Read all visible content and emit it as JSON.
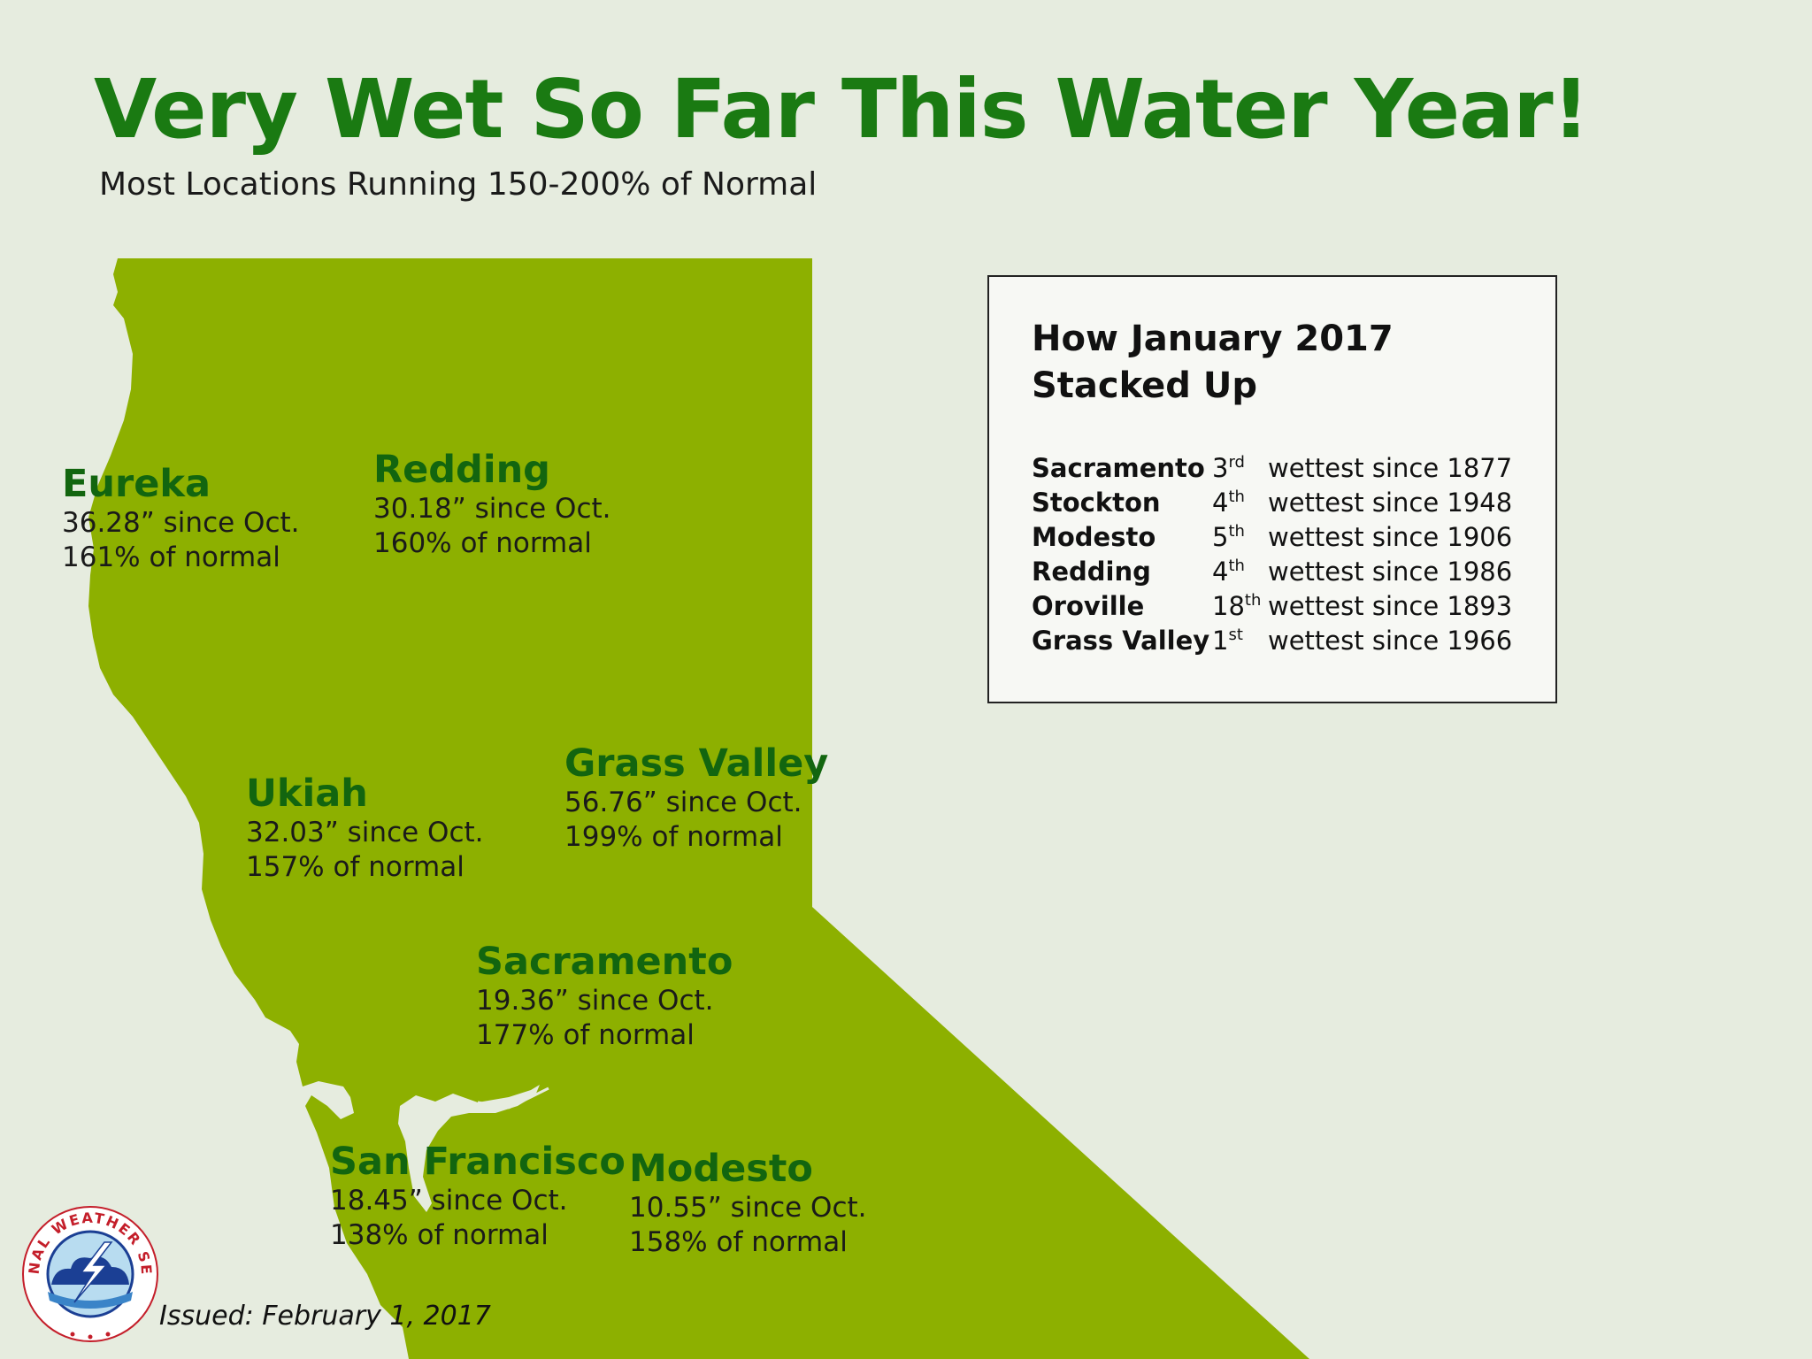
{
  "title": "Very Wet So Far This Water Year!",
  "subtitle": "Most Locations Running 150-200% of Normal",
  "colors": {
    "land": "#8db000",
    "background": "#e6ecdf",
    "title": "#1a7a12",
    "city_name": "#12650f"
  },
  "cities": [
    {
      "name": "Eureka",
      "precip": "36.28” since Oct.",
      "pct": "161% of normal"
    },
    {
      "name": "Redding",
      "precip": "30.18” since Oct.",
      "pct": "160% of normal"
    },
    {
      "name": "Grass Valley",
      "precip": "56.76” since Oct.",
      "pct": "199% of normal"
    },
    {
      "name": "Ukiah",
      "precip": "32.03” since Oct.",
      "pct": "157% of normal"
    },
    {
      "name": "Sacramento",
      "precip": "19.36” since Oct.",
      "pct": "177% of normal"
    },
    {
      "name": "San Francisco",
      "precip": "18.45” since Oct.",
      "pct": "138% of normal"
    },
    {
      "name": "Modesto",
      "precip": "10.55” since Oct.",
      "pct": "158% of normal"
    }
  ],
  "panel": {
    "title_line1": "How January 2017",
    "title_line2": "Stacked Up",
    "rows": [
      {
        "city": "Sacramento",
        "rank_num": "3",
        "rank_suffix": "rd",
        "text": "wettest since 1877"
      },
      {
        "city": "Stockton",
        "rank_num": "4",
        "rank_suffix": "th",
        "text": "wettest since 1948"
      },
      {
        "city": "Modesto",
        "rank_num": "5",
        "rank_suffix": "th",
        "text": "wettest since 1906"
      },
      {
        "city": "Redding",
        "rank_num": "4",
        "rank_suffix": "th",
        "text": "wettest since 1986"
      },
      {
        "city": "Oroville",
        "rank_num": "18",
        "rank_suffix": "th",
        "text": "wettest since 1893"
      },
      {
        "city": "Grass Valley",
        "rank_num": "1",
        "rank_suffix": "st",
        "text": "wettest since 1966"
      }
    ]
  },
  "issued": "Issued: February 1, 2017",
  "logo": {
    "text": "NATIONAL WEATHER SERVICE",
    "icon": "nws-logo-icon"
  }
}
